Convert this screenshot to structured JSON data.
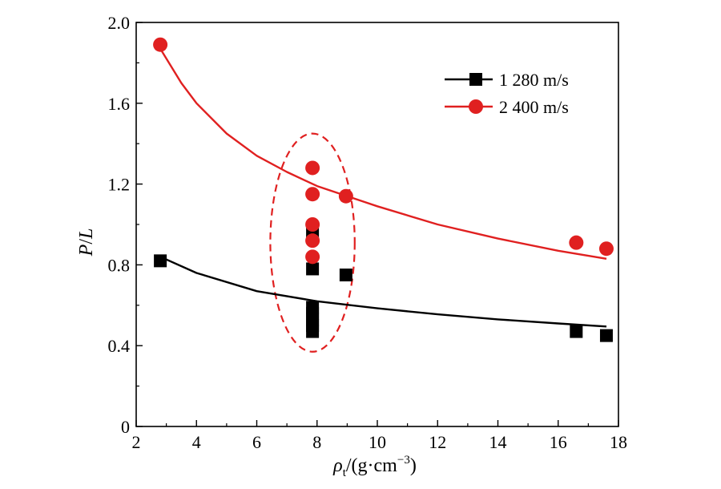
{
  "chart_data": {
    "type": "scatter",
    "xlabel": {
      "symbol": "ρ",
      "subscript": "t",
      "unit_open": "/(g·cm",
      "unit_exp": "−3",
      "unit_close": ")"
    },
    "ylabel": {
      "symbol": "P",
      "slash": "/",
      "symbol2": "L"
    },
    "xlim": [
      2,
      18
    ],
    "ylim": [
      0,
      2.0
    ],
    "xticks": [
      "2",
      "4",
      "6",
      "8",
      "10",
      "12",
      "14",
      "16",
      "18"
    ],
    "yticks": [
      "0",
      "0.4",
      "0.8",
      "1.2",
      "1.6",
      "2.0"
    ],
    "grid": false,
    "legend_position": "top-right",
    "series": [
      {
        "name": "1 280 m/s",
        "color": "#000000",
        "marker": "square",
        "points": [
          {
            "x": 2.8,
            "y": 0.82
          },
          {
            "x": 7.85,
            "y": 0.96
          },
          {
            "x": 7.85,
            "y": 0.78
          },
          {
            "x": 7.85,
            "y": 0.59
          },
          {
            "x": 7.85,
            "y": 0.56
          },
          {
            "x": 7.85,
            "y": 0.53
          },
          {
            "x": 7.85,
            "y": 0.5
          },
          {
            "x": 7.85,
            "y": 0.47
          },
          {
            "x": 8.96,
            "y": 0.75
          },
          {
            "x": 16.6,
            "y": 0.47
          },
          {
            "x": 17.6,
            "y": 0.45
          }
        ],
        "fit": [
          {
            "x": 2.8,
            "y": 0.84
          },
          {
            "x": 4,
            "y": 0.76
          },
          {
            "x": 6,
            "y": 0.67
          },
          {
            "x": 8,
            "y": 0.62
          },
          {
            "x": 10,
            "y": 0.585
          },
          {
            "x": 12,
            "y": 0.555
          },
          {
            "x": 14,
            "y": 0.53
          },
          {
            "x": 16,
            "y": 0.51
          },
          {
            "x": 17.6,
            "y": 0.495
          }
        ]
      },
      {
        "name": "2 400 m/s",
        "color": "#e02020",
        "marker": "circle",
        "points": [
          {
            "x": 2.8,
            "y": 1.89
          },
          {
            "x": 7.85,
            "y": 1.28
          },
          {
            "x": 7.85,
            "y": 1.15
          },
          {
            "x": 7.85,
            "y": 1.0
          },
          {
            "x": 7.85,
            "y": 0.92
          },
          {
            "x": 7.85,
            "y": 0.84
          },
          {
            "x": 8.96,
            "y": 1.14
          },
          {
            "x": 16.6,
            "y": 0.91
          },
          {
            "x": 17.6,
            "y": 0.88
          }
        ],
        "fit": [
          {
            "x": 2.8,
            "y": 1.87
          },
          {
            "x": 3.5,
            "y": 1.7
          },
          {
            "x": 4,
            "y": 1.6
          },
          {
            "x": 5,
            "y": 1.45
          },
          {
            "x": 6,
            "y": 1.34
          },
          {
            "x": 7,
            "y": 1.26
          },
          {
            "x": 8,
            "y": 1.19
          },
          {
            "x": 10,
            "y": 1.09
          },
          {
            "x": 12,
            "y": 1.0
          },
          {
            "x": 14,
            "y": 0.93
          },
          {
            "x": 16,
            "y": 0.87
          },
          {
            "x": 17.6,
            "y": 0.83
          }
        ]
      }
    ],
    "annotation": {
      "type": "dashed-ellipse",
      "color": "#e02020",
      "center": {
        "x": 7.85,
        "y": 0.91
      },
      "rx": 1.4,
      "ry": 0.54
    }
  }
}
